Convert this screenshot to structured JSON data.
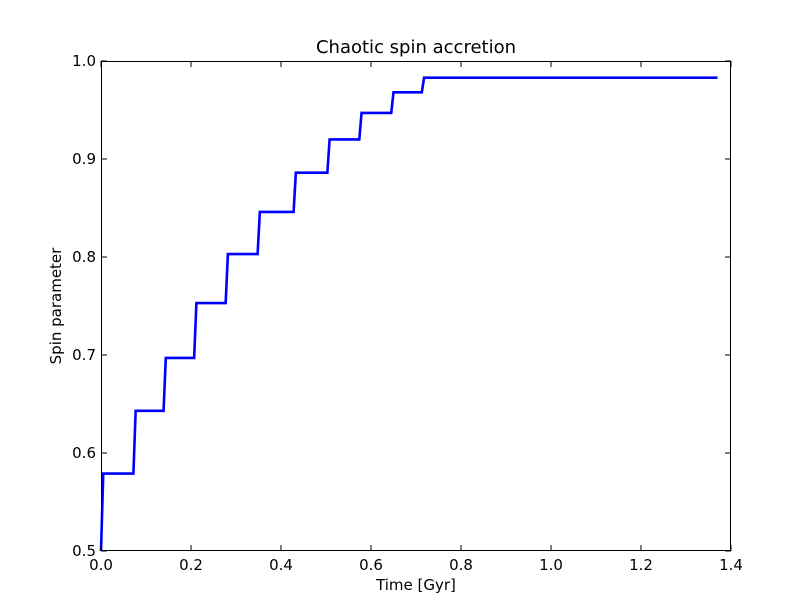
{
  "chart_data": {
    "type": "line",
    "title": "Chaotic spin accretion",
    "xlabel": "Time [Gyr]",
    "ylabel": "Spin parameter",
    "xlim": [
      0.0,
      1.4
    ],
    "ylim": [
      0.5,
      1.0
    ],
    "xticks": [
      0.0,
      0.2,
      0.4,
      0.6,
      0.8,
      1.0,
      1.2,
      1.4
    ],
    "xtick_labels": [
      "0.0",
      "0.2",
      "0.4",
      "0.6",
      "0.8",
      "1.0",
      "1.2",
      "1.4"
    ],
    "yticks": [
      0.5,
      0.6,
      0.7,
      0.8,
      0.9,
      1.0
    ],
    "ytick_labels": [
      "0.5",
      "0.6",
      "0.7",
      "0.8",
      "0.9",
      "1.0"
    ],
    "grid": false,
    "legend": "none",
    "series": [
      {
        "color": "#0000ff",
        "x": [
          0.0,
          0.005,
          0.072,
          0.077,
          0.139,
          0.144,
          0.207,
          0.212,
          0.277,
          0.282,
          0.348,
          0.353,
          0.428,
          0.433,
          0.503,
          0.508,
          0.574,
          0.579,
          0.645,
          0.65,
          0.713,
          0.718,
          1.37
        ],
        "y": [
          0.5,
          0.579,
          0.579,
          0.643,
          0.643,
          0.697,
          0.697,
          0.753,
          0.753,
          0.803,
          0.803,
          0.846,
          0.846,
          0.886,
          0.886,
          0.92,
          0.92,
          0.947,
          0.947,
          0.968,
          0.968,
          0.983,
          0.983
        ]
      }
    ]
  }
}
